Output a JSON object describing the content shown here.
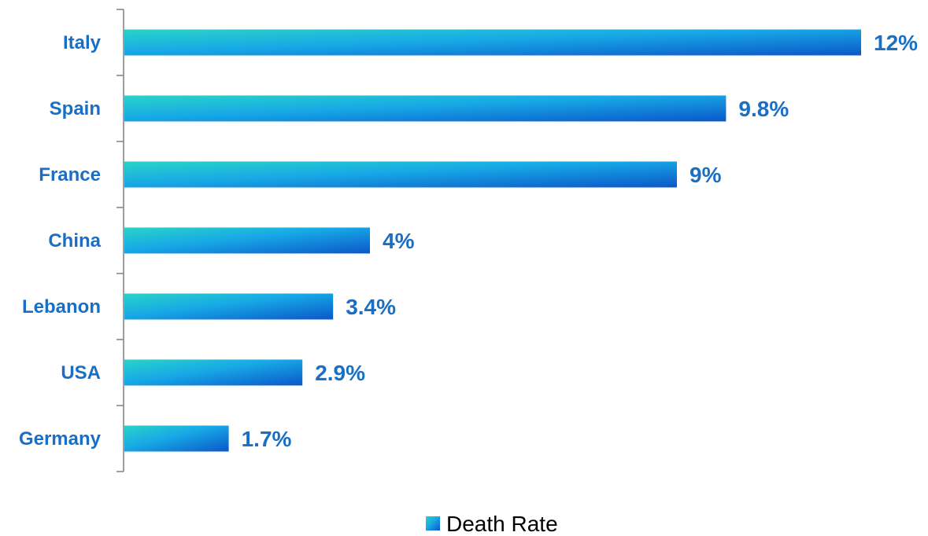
{
  "chart_data": {
    "type": "bar",
    "orientation": "horizontal",
    "categories": [
      "Italy",
      "Spain",
      "France",
      "China",
      "Lebanon",
      "USA",
      "Germany"
    ],
    "series": [
      {
        "name": "Death Rate",
        "values": [
          12,
          9.8,
          9,
          4,
          3.4,
          2.9,
          1.7
        ],
        "labels": [
          "12%",
          "9.8%",
          "9%",
          "4%",
          "3.4%",
          "2.9%",
          "1.7%"
        ]
      }
    ],
    "xlim": [
      0,
      12
    ],
    "grid": false,
    "legend_position": "bottom",
    "colors": {
      "bar_gradient_start": "#2ad3c8",
      "bar_gradient_mid": "#17a8e6",
      "bar_gradient_end": "#0b57c9",
      "label_text": "#1a6fc4",
      "axis": "#7f7f7f"
    }
  }
}
